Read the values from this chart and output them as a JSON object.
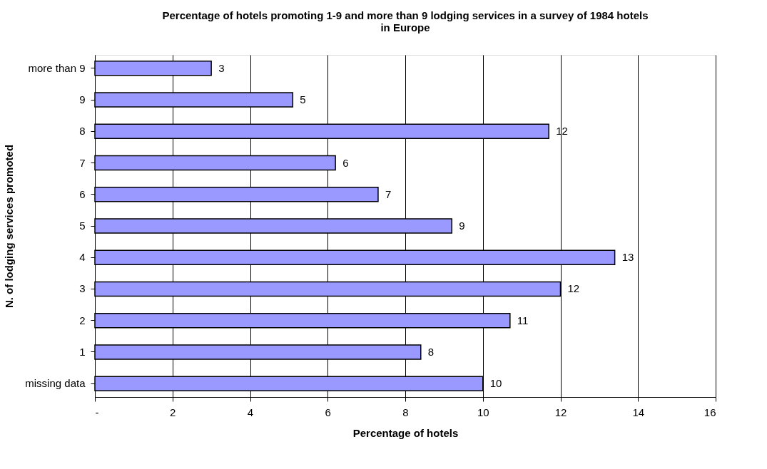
{
  "chart_data": {
    "type": "bar",
    "orientation": "horizontal",
    "title": "Percentage of hotels promoting 1-9 and more than 9 lodging services in a survey of 1984 hotels in Europe",
    "xlabel": "Percentage of hotels",
    "ylabel": "N. of lodging services promoted",
    "categories": [
      "more than 9",
      "9",
      "8",
      "7",
      "6",
      "5",
      "4",
      "3",
      "2",
      "1",
      "missing data"
    ],
    "values": [
      3.0,
      5.1,
      11.7,
      6.2,
      7.3,
      9.2,
      13.4,
      12.0,
      10.7,
      8.4,
      10.0
    ],
    "value_labels": [
      "3",
      "5",
      "12",
      "6",
      "7",
      "9",
      "13",
      "12",
      "11",
      "8",
      "10"
    ],
    "color": "#9999ff",
    "xlim": [
      0,
      16
    ],
    "xticks": [
      {
        "value": 0,
        "label": "-"
      },
      2,
      4,
      6,
      8,
      10,
      12,
      14,
      16
    ],
    "grid": "x"
  }
}
